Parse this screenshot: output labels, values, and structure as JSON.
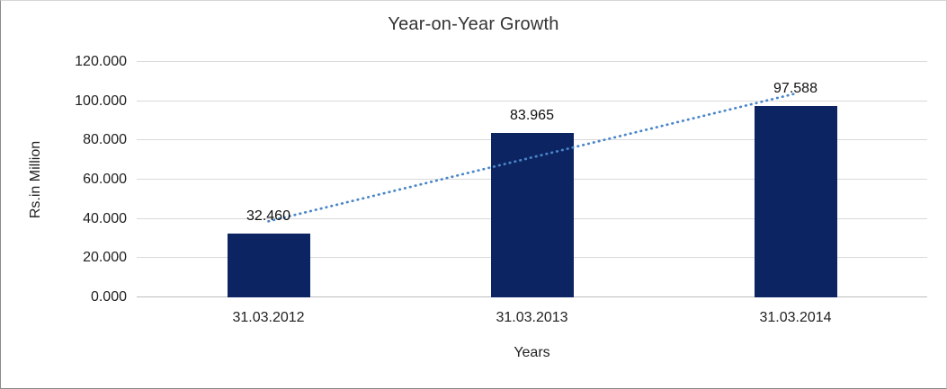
{
  "chart_data": {
    "type": "bar",
    "title": "Year-on-Year Growth",
    "xlabel": "Years",
    "ylabel": "Rs.in Million",
    "categories": [
      "31.03.2012",
      "31.03.2013",
      "31.03.2014"
    ],
    "values": [
      32.46,
      83.965,
      97.588
    ],
    "bar_labels": [
      "32.460",
      "83.965",
      "97.588"
    ],
    "ylim": [
      0,
      120
    ],
    "ytick_step": 20,
    "ytick_labels": [
      "0.000",
      "20.000",
      "40.000",
      "60.000",
      "80.000",
      "100.000",
      "120.000"
    ],
    "grid": "horizontal",
    "legend": "none",
    "bar_color": "#0d2462",
    "gridline_color": "#d9d9d9",
    "trendline": {
      "style": "dotted",
      "fit": "linear",
      "color": "#4a86c8"
    }
  }
}
